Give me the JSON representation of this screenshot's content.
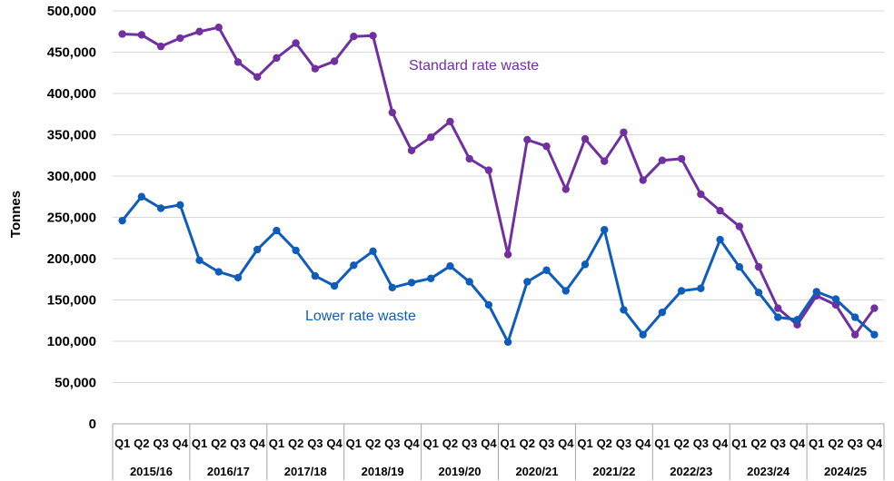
{
  "chart_data": {
    "type": "line",
    "title": "",
    "xlabel": "",
    "ylabel": "Tonnes",
    "ylim": [
      0,
      500000
    ],
    "yticks": [
      "0",
      "50,000",
      "100,000",
      "150,000",
      "200,000",
      "250,000",
      "300,000",
      "350,000",
      "400,000",
      "450,000",
      "500,000"
    ],
    "grid": true,
    "quarters": [
      "Q1",
      "Q2",
      "Q3",
      "Q4"
    ],
    "years": [
      "2015/16",
      "2016/17",
      "2017/18",
      "2018/19",
      "2019/20",
      "2020/21",
      "2021/22",
      "2022/23",
      "2023/24",
      "2024/25"
    ],
    "series": [
      {
        "name": "Standard rate waste",
        "color": "#7030a0",
        "values": [
          472000,
          471000,
          457000,
          467000,
          475000,
          480000,
          438000,
          420000,
          443000,
          461000,
          430000,
          439000,
          469000,
          470000,
          377000,
          331000,
          347000,
          366000,
          321000,
          307000,
          205000,
          344000,
          336000,
          284000,
          345000,
          318000,
          353000,
          295000,
          319000,
          321000,
          278000,
          258000,
          239000,
          190000,
          140000,
          120000,
          155000,
          144000,
          108000,
          140000
        ]
      },
      {
        "name": "Lower rate waste",
        "color": "#0f5dbb",
        "values": [
          246000,
          275000,
          261000,
          265000,
          198000,
          184000,
          177000,
          211000,
          234000,
          210000,
          179000,
          167000,
          192000,
          209000,
          165000,
          171000,
          176000,
          191000,
          172000,
          144000,
          99000,
          172000,
          186000,
          161000,
          193000,
          235000,
          138000,
          108000,
          135000,
          161000,
          164000,
          223000,
          190000,
          159000,
          129000,
          126000,
          160000,
          151000,
          129000,
          108000
        ]
      }
    ]
  }
}
